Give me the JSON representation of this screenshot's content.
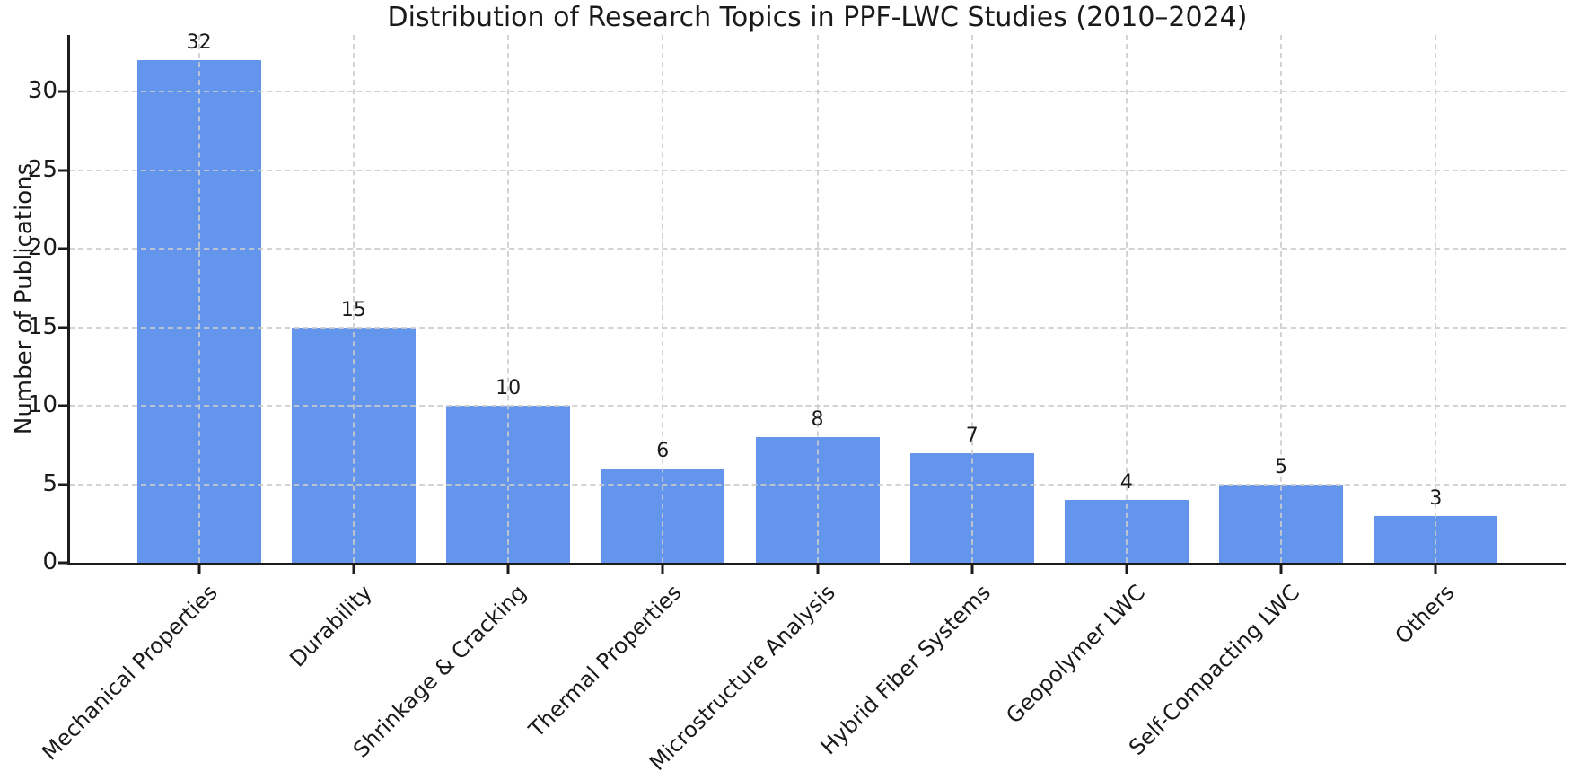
{
  "figure": {
    "background_color": "#ffffff",
    "text_color": "#1a1a1a"
  },
  "chart_data": {
    "type": "bar",
    "title": "Distribution of Research Topics in PPF-LWC Studies (2010–2024)",
    "xlabel": "",
    "ylabel": "Number of Publications",
    "categories": [
      "Mechanical Properties",
      "Durability",
      "Shrinkage & Cracking",
      "Thermal Properties",
      "Microstructure Analysis",
      "Hybrid Fiber Systems",
      "Geopolymer LWC",
      "Self-Compacting LWC",
      "Others"
    ],
    "values": [
      32,
      15,
      10,
      6,
      8,
      7,
      4,
      5,
      3
    ],
    "bar_value_labels": [
      "32",
      "15",
      "10",
      "6",
      "8",
      "7",
      "4",
      "5",
      "3"
    ],
    "yticks": [
      0,
      5,
      10,
      15,
      20,
      25,
      30
    ],
    "ylim": [
      0,
      33.6
    ],
    "bar_color": "#6495ED",
    "grid": {
      "visible": true,
      "style": "dashed",
      "color": "#cccccc",
      "axes": "both"
    },
    "legend_position": "none",
    "x_label_rotation_deg": 45
  }
}
